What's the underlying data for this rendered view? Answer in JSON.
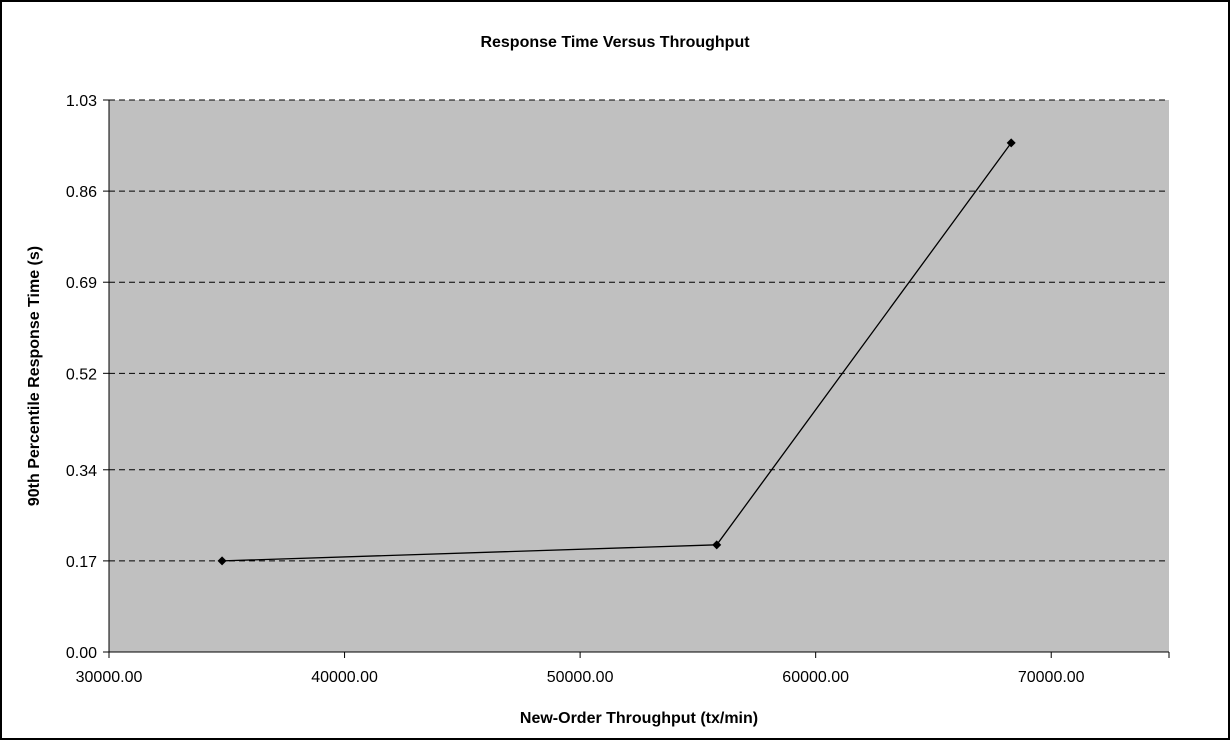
{
  "chart_data": {
    "type": "scatter",
    "title": "Response Time Versus Throughput",
    "xlabel": "New-Order Throughput (tx/min)",
    "ylabel": "90th Percentile Response Time (s)",
    "xlim": [
      30000,
      75000
    ],
    "ylim": [
      0,
      1.03
    ],
    "x_ticks": [
      30000,
      40000,
      50000,
      60000,
      70000
    ],
    "x_tick_labels": [
      "30000.00",
      "40000.00",
      "50000.00",
      "60000.00",
      "70000.00"
    ],
    "y_ticks": [
      0,
      0.17,
      0.34,
      0.52,
      0.69,
      0.86,
      1.03
    ],
    "y_tick_labels": [
      "0.00",
      "0.17",
      "0.34",
      "0.52",
      "0.69",
      "0.86",
      "1.03"
    ],
    "grid": "horizontal-dashed",
    "legend": "none",
    "series": [
      {
        "x": [
          34800,
          55800,
          68300
        ],
        "y": [
          0.17,
          0.2,
          0.95
        ],
        "marker": "diamond",
        "line": true
      }
    ],
    "colors": {
      "plot_background": "#c0c0c0",
      "line": "#000000",
      "grid": "#000000",
      "frame": "#000000"
    }
  }
}
